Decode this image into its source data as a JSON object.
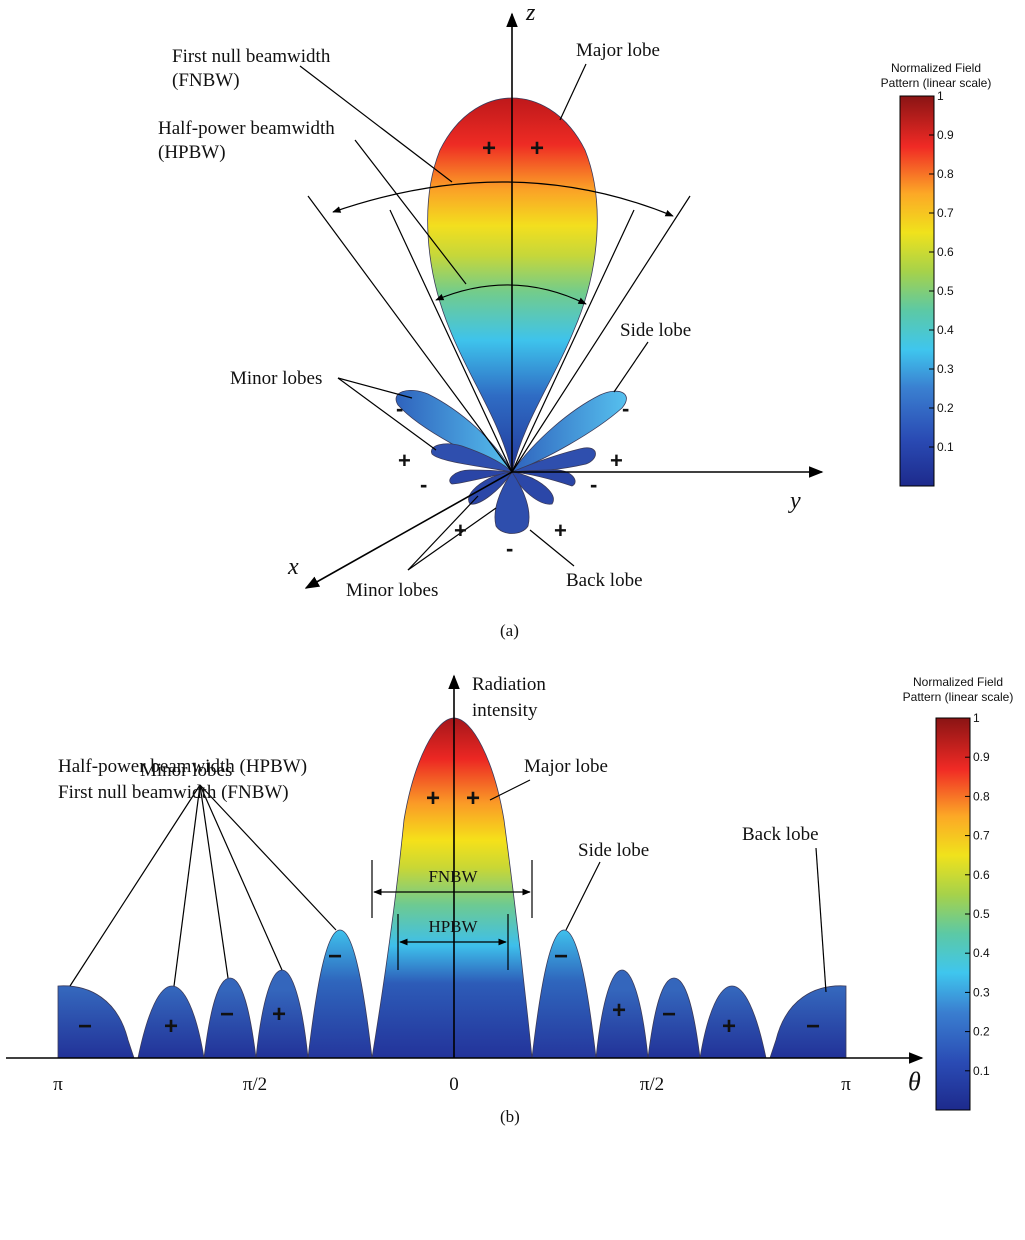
{
  "panel_a": {
    "caption": "(a)",
    "axis_z": "z",
    "axis_y": "y",
    "axis_x": "x",
    "label_fnbw_1": "First null beamwidth",
    "label_fnbw_2": "(FNBW)",
    "label_hpbw_1": "Half-power beamwidth",
    "label_hpbw_2": "(HPBW)",
    "label_major": "Major lobe",
    "label_side": "Side lobe",
    "label_minor_top": "Minor lobes",
    "label_minor_bottom": "Minor lobes",
    "label_back": "Back lobe",
    "signs": {
      "plus": "+",
      "minus": "-"
    },
    "colorbar": {
      "title_1": "Normalized Field",
      "title_2": "Pattern (linear scale)",
      "ticks": [
        "1",
        "0.9",
        "0.8",
        "0.7",
        "0.6",
        "0.5",
        "0.4",
        "0.3",
        "0.2",
        "0.1"
      ]
    }
  },
  "panel_b": {
    "caption": "(b)",
    "axis_y_1": "Radiation",
    "axis_y_2": "intensity",
    "axis_theta": "θ",
    "legend_hpbw": "Half-power beamwidth (HPBW)",
    "legend_fnbw": "First null beamwidth (FNBW)",
    "label_major": "Major lobe",
    "label_side": "Side lobe",
    "label_minor": "Minor lobes",
    "label_back": "Back lobe",
    "label_hpbw": "HPBW",
    "label_fnbw": "FNBW",
    "x_ticks": [
      "π",
      "π/2",
      "0",
      "π/2",
      "π"
    ],
    "signs": {
      "plus": "+",
      "minus": "−"
    },
    "colorbar": {
      "title_1": "Normalized Field",
      "title_2": "Pattern (linear scale)",
      "ticks": [
        "1",
        "0.9",
        "0.8",
        "0.7",
        "0.6",
        "0.5",
        "0.4",
        "0.3",
        "0.2",
        "0.1"
      ]
    }
  },
  "colors": {
    "jet": [
      "#000080",
      "#0000ff",
      "#00ffff",
      "#ffff00",
      "#ff0000",
      "#800000"
    ],
    "lobe_blue": "#2f5ba8"
  }
}
